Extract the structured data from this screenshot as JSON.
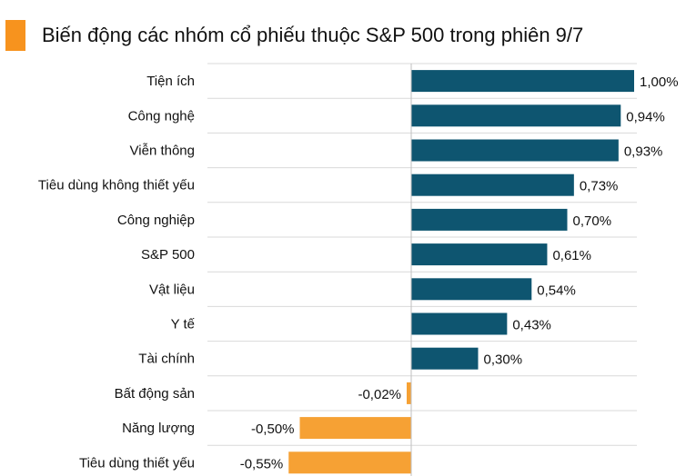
{
  "title": "Biến động các nhóm cổ phiếu thuộc S&P 500 trong phiên 9/7",
  "colors": {
    "accent": "#f7931e",
    "positive": "#0e5570",
    "negative": "#f6a134",
    "grid": "#d9d9d9"
  },
  "chart_data": {
    "type": "bar",
    "orientation": "horizontal",
    "title": "Biến động các nhóm cổ phiếu thuộc S&P 500 trong phiên 9/7",
    "categories": [
      "Tiện ích",
      "Công nghệ",
      "Viễn thông",
      "Tiêu dùng không thiết yếu",
      "Công nghiệp",
      "S&P 500",
      "Vật liệu",
      "Y tế",
      "Tài chính",
      "Bất động sản",
      "Năng lượng",
      "Tiêu dùng thiết yếu"
    ],
    "values": [
      1.0,
      0.94,
      0.93,
      0.73,
      0.7,
      0.61,
      0.54,
      0.43,
      0.3,
      -0.02,
      -0.5,
      -0.55
    ],
    "value_labels": [
      "1,00%",
      "0,94%",
      "0,93%",
      "0,73%",
      "0,70%",
      "0,61%",
      "0,54%",
      "0,43%",
      "0,30%",
      "-0,02%",
      "-0,50%",
      "-0,55%"
    ],
    "unit": "%",
    "xlim": [
      -0.55,
      1.0
    ],
    "grid": true
  }
}
